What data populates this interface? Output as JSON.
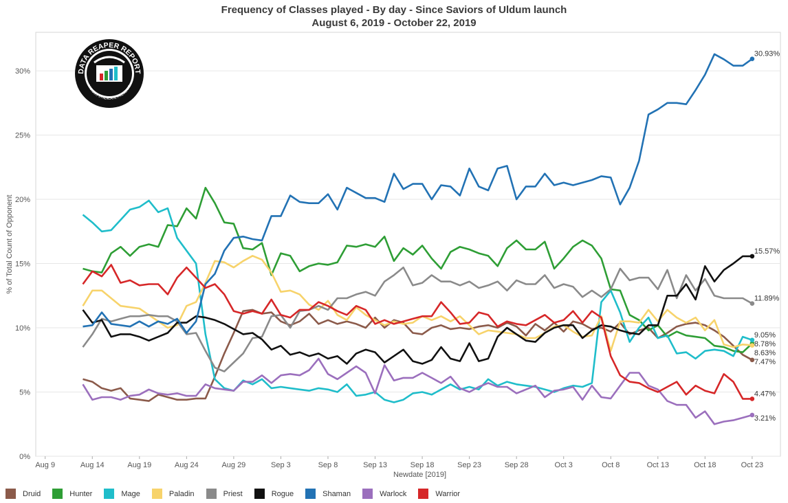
{
  "title": "Frequency of Classes played - By day - Since Saviors of Uldum launch",
  "subtitle": "August 6, 2019 - October 22, 2019",
  "logo": {
    "top_text": "DATA REAPER REPORT",
    "bottom_text": "VICIOUS SYNDICATE PRESENTS"
  },
  "chart_data": {
    "type": "line",
    "title": "Frequency of Classes played - By day - Since Saviors of Uldum launch",
    "subtitle": "August 6, 2019 - October 22, 2019",
    "xlabel": "Newdate [2019]",
    "ylabel": "% of Total Count of Opponent",
    "x_start": "2019-08-13",
    "x_end": "2019-10-22",
    "x_ticks": [
      "Aug 9",
      "Aug 14",
      "Aug 19",
      "Aug 24",
      "Aug 29",
      "Sep 3",
      "Sep 8",
      "Sep 13",
      "Sep 18",
      "Sep 23",
      "Sep 28",
      "Oct 3",
      "Oct 8",
      "Oct 13",
      "Oct 18",
      "Oct 23"
    ],
    "y_ticks": [
      "0%",
      "5%",
      "10%",
      "15%",
      "20%",
      "25%",
      "30%"
    ],
    "ylim": [
      0,
      33
    ],
    "grid": "horizontal",
    "legend_position": "bottom",
    "series": [
      {
        "name": "Druid",
        "color": "#8b5a4a",
        "end_label": "7.47%",
        "values": [
          6.0,
          5.8,
          5.3,
          5.1,
          5.3,
          4.5,
          4.4,
          4.3,
          4.8,
          4.6,
          4.4,
          4.4,
          4.5,
          4.5,
          6.2,
          8.0,
          9.6,
          11.3,
          11.4,
          11.1,
          11.2,
          10.5,
          10.2,
          10.5,
          11.1,
          10.3,
          10.6,
          10.3,
          10.5,
          10.3,
          10.0,
          10.8,
          10.0,
          10.6,
          10.4,
          9.6,
          9.5,
          10.0,
          10.2,
          9.9,
          10.0,
          9.9,
          10.1,
          10.2,
          10.0,
          10.4,
          10.1,
          9.4,
          10.3,
          9.8,
          10.4,
          9.7,
          10.5,
          10.3,
          9.9,
          10.0,
          9.7,
          10.4,
          9.5,
          9.8,
          10.0,
          9.2,
          9.6,
          10.1,
          10.3,
          10.4,
          10.2,
          9.8,
          9.3,
          8.6,
          7.9,
          7.5
        ]
      },
      {
        "name": "Hunter",
        "color": "#2e9e35",
        "end_label": "8.78%",
        "values": [
          14.6,
          14.4,
          14.3,
          15.8,
          16.3,
          15.6,
          16.3,
          16.5,
          16.3,
          18.0,
          17.9,
          19.3,
          18.5,
          20.9,
          19.7,
          18.2,
          18.1,
          16.2,
          16.1,
          16.6,
          14.1,
          15.8,
          15.6,
          14.4,
          14.8,
          15.0,
          14.9,
          15.1,
          16.4,
          16.3,
          16.5,
          16.3,
          17.1,
          15.2,
          16.2,
          15.7,
          16.4,
          15.4,
          14.6,
          15.9,
          16.3,
          16.1,
          15.8,
          15.6,
          14.8,
          16.2,
          16.8,
          16.1,
          16.1,
          16.7,
          14.6,
          15.4,
          16.3,
          16.8,
          16.4,
          15.4,
          13.0,
          12.9,
          11.0,
          10.6,
          9.8,
          10.2,
          9.3,
          9.7,
          9.4,
          9.3,
          9.2,
          8.6,
          8.5,
          8.2,
          8.1,
          8.78
        ]
      },
      {
        "name": "Mage",
        "color": "#1fbdca",
        "end_label": "9.05%",
        "values": [
          18.8,
          18.2,
          17.5,
          17.6,
          18.4,
          19.2,
          19.4,
          19.9,
          19.0,
          19.3,
          17.0,
          16.0,
          15.0,
          9.5,
          6.0,
          5.3,
          5.1,
          5.9,
          5.6,
          6.0,
          5.3,
          5.4,
          5.3,
          5.2,
          5.1,
          5.3,
          5.2,
          5.0,
          5.6,
          4.7,
          4.8,
          5.0,
          4.4,
          4.2,
          4.4,
          4.9,
          5.0,
          4.8,
          5.2,
          5.6,
          5.2,
          5.4,
          5.2,
          6.0,
          5.5,
          5.8,
          5.6,
          5.5,
          5.4,
          5.2,
          5.0,
          5.3,
          5.5,
          5.4,
          5.7,
          12.0,
          12.9,
          11.2,
          8.9,
          10.0,
          10.8,
          9.2,
          9.4,
          8.0,
          8.1,
          7.6,
          8.2,
          8.3,
          8.2,
          7.8,
          9.3,
          9.05
        ]
      },
      {
        "name": "Paladin",
        "color": "#f7d36b",
        "end_label": "8.63%",
        "values": [
          11.7,
          12.9,
          12.9,
          12.3,
          11.7,
          11.6,
          11.5,
          11.0,
          10.5,
          10.0,
          10.2,
          11.7,
          12.0,
          13.5,
          15.2,
          15.1,
          14.7,
          15.2,
          15.6,
          15.3,
          14.3,
          12.8,
          12.9,
          12.6,
          11.8,
          11.4,
          12.1,
          11.0,
          10.6,
          11.6,
          11.0,
          10.6,
          10.2,
          10.5,
          10.3,
          10.4,
          10.9,
          10.6,
          10.9,
          10.5,
          10.9,
          10.2,
          9.5,
          9.8,
          9.7,
          9.6,
          9.5,
          9.2,
          9.2,
          9.6,
          10.1,
          10.2,
          9.7,
          9.3,
          9.4,
          10.9,
          8.2,
          10.5,
          10.5,
          10.4,
          11.4,
          10.5,
          11.4,
          10.8,
          10.4,
          10.8,
          9.8,
          10.6,
          8.7,
          8.5,
          8.7,
          8.63
        ]
      },
      {
        "name": "Priest",
        "color": "#8a8a8a",
        "end_label": "11.89%",
        "values": [
          8.5,
          9.5,
          10.7,
          10.5,
          10.7,
          10.9,
          10.9,
          11.0,
          10.9,
          10.9,
          10.5,
          9.5,
          9.6,
          8.2,
          6.9,
          6.6,
          7.3,
          8.0,
          9.2,
          9.3,
          10.9,
          11.0,
          10.0,
          11.3,
          11.4,
          11.7,
          11.4,
          12.3,
          12.3,
          12.6,
          12.8,
          12.5,
          13.6,
          14.1,
          14.7,
          13.3,
          13.5,
          14.1,
          13.6,
          13.6,
          13.3,
          13.6,
          13.1,
          13.3,
          13.6,
          12.9,
          13.7,
          13.4,
          13.4,
          14.1,
          13.1,
          13.4,
          13.2,
          12.4,
          12.9,
          12.4,
          13.0,
          14.6,
          13.7,
          13.9,
          13.9,
          13.0,
          14.5,
          12.3,
          14.1,
          12.9,
          13.8,
          12.5,
          12.3,
          12.3,
          12.3,
          11.89
        ]
      },
      {
        "name": "Rogue",
        "color": "#111111",
        "end_label": "15.57%",
        "values": [
          11.4,
          10.4,
          10.6,
          9.3,
          9.5,
          9.5,
          9.3,
          9.0,
          9.3,
          9.6,
          10.4,
          10.4,
          10.9,
          10.8,
          10.6,
          10.3,
          9.9,
          9.5,
          9.6,
          9.1,
          8.3,
          8.6,
          7.9,
          8.1,
          7.8,
          8.0,
          7.6,
          7.8,
          7.2,
          8.0,
          8.3,
          8.1,
          7.3,
          7.8,
          8.3,
          7.4,
          7.2,
          7.5,
          8.5,
          7.6,
          7.4,
          8.8,
          7.4,
          7.6,
          9.3,
          10.0,
          9.5,
          9.0,
          8.9,
          9.6,
          10.0,
          10.2,
          10.2,
          9.2,
          9.8,
          10.2,
          10.1,
          9.8,
          9.6,
          9.5,
          10.2,
          10.2,
          12.5,
          12.5,
          13.4,
          12.2,
          14.8,
          13.6,
          14.5,
          15.0,
          15.57,
          15.57
        ]
      },
      {
        "name": "Shaman",
        "color": "#2272b4",
        "end_label": "30.93%",
        "values": [
          10.1,
          10.2,
          11.2,
          10.3,
          10.2,
          10.1,
          10.5,
          10.1,
          10.5,
          10.3,
          10.7,
          9.6,
          10.5,
          13.4,
          14.2,
          16.0,
          17.0,
          17.1,
          16.9,
          16.8,
          18.7,
          18.7,
          20.3,
          19.8,
          19.7,
          19.7,
          20.4,
          19.2,
          20.9,
          20.5,
          20.1,
          20.1,
          19.8,
          22.0,
          20.8,
          21.2,
          21.2,
          20.0,
          21.1,
          21.0,
          20.3,
          22.4,
          21.0,
          20.7,
          22.4,
          22.6,
          20.0,
          21.0,
          21.0,
          22.0,
          21.1,
          21.3,
          21.1,
          21.3,
          21.5,
          21.8,
          21.7,
          19.6,
          20.9,
          23.0,
          26.6,
          27.0,
          27.5,
          27.5,
          27.4,
          28.5,
          29.7,
          31.3,
          30.9,
          30.4,
          30.4,
          30.93
        ]
      },
      {
        "name": "Warlock",
        "color": "#9b6fbd",
        "end_label": "3.21%",
        "values": [
          5.6,
          4.4,
          4.6,
          4.6,
          4.4,
          4.7,
          4.8,
          5.2,
          4.9,
          4.8,
          4.9,
          4.7,
          4.7,
          5.6,
          5.3,
          5.2,
          5.1,
          5.8,
          5.8,
          6.3,
          5.7,
          6.3,
          6.4,
          6.3,
          6.7,
          7.6,
          6.4,
          6.0,
          6.5,
          7.0,
          6.5,
          4.9,
          7.1,
          5.9,
          6.1,
          6.1,
          6.5,
          6.1,
          5.7,
          6.2,
          5.3,
          5.0,
          5.4,
          5.7,
          5.4,
          5.4,
          4.9,
          5.2,
          5.5,
          4.6,
          5.1,
          5.2,
          5.4,
          4.4,
          5.5,
          4.6,
          4.5,
          5.5,
          6.5,
          6.5,
          5.5,
          5.2,
          4.3,
          4.0,
          4.0,
          3.0,
          3.5,
          2.5,
          2.7,
          2.8,
          3.0,
          3.21
        ]
      },
      {
        "name": "Warrior",
        "color": "#d62728",
        "end_label": "4.47%",
        "values": [
          13.4,
          14.4,
          14.0,
          14.9,
          13.5,
          13.7,
          13.3,
          13.4,
          13.4,
          12.6,
          13.9,
          14.7,
          13.9,
          13.1,
          13.4,
          12.6,
          11.3,
          11.1,
          11.3,
          11.1,
          12.2,
          11.0,
          10.8,
          11.4,
          11.4,
          12.0,
          11.7,
          11.3,
          11.0,
          11.7,
          11.4,
          10.3,
          10.6,
          10.3,
          10.5,
          10.7,
          10.9,
          10.9,
          12.0,
          11.2,
          10.3,
          10.4,
          11.2,
          11.0,
          10.1,
          10.5,
          10.3,
          10.2,
          10.6,
          11.0,
          10.4,
          10.6,
          11.3,
          10.4,
          11.3,
          10.8,
          7.8,
          6.3,
          5.8,
          5.7,
          5.3,
          5.0,
          5.4,
          5.8,
          4.8,
          5.5,
          5.1,
          4.9,
          6.4,
          5.8,
          4.47,
          4.47
        ]
      }
    ]
  },
  "legend": {
    "items": [
      {
        "label": "Druid",
        "color": "#8b5a4a"
      },
      {
        "label": "Hunter",
        "color": "#2e9e35"
      },
      {
        "label": "Mage",
        "color": "#1fbdca"
      },
      {
        "label": "Paladin",
        "color": "#f7d36b"
      },
      {
        "label": "Priest",
        "color": "#8a8a8a"
      },
      {
        "label": "Rogue",
        "color": "#111111"
      },
      {
        "label": "Shaman",
        "color": "#2272b4"
      },
      {
        "label": "Warlock",
        "color": "#9b6fbd"
      },
      {
        "label": "Warrior",
        "color": "#d62728"
      }
    ]
  }
}
